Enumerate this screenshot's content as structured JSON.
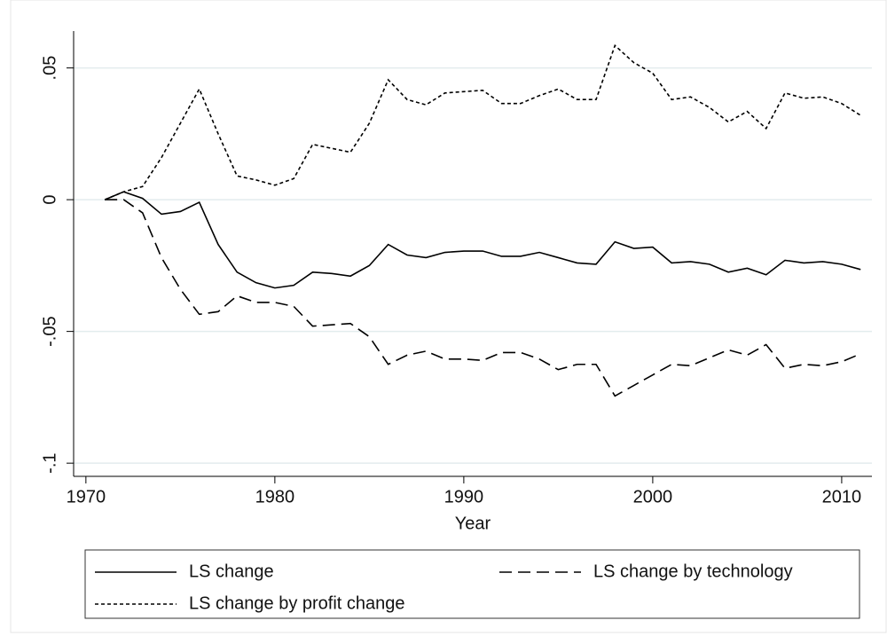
{
  "chart_data": {
    "type": "line",
    "x_label": "Year",
    "x": [
      1971,
      1972,
      1973,
      1974,
      1975,
      1976,
      1977,
      1978,
      1979,
      1980,
      1981,
      1982,
      1983,
      1984,
      1985,
      1986,
      1987,
      1988,
      1989,
      1990,
      1991,
      1992,
      1993,
      1994,
      1995,
      1996,
      1997,
      1998,
      1999,
      2000,
      2001,
      2002,
      2003,
      2004,
      2005,
      2006,
      2007,
      2008,
      2009,
      2010,
      2011
    ],
    "series": [
      {
        "name": "LS change",
        "color": "#000000",
        "line_style": "solid",
        "values": [
          0,
          0.003,
          0.0005,
          -0.0055,
          -0.0045,
          -0.001,
          -0.017,
          -0.0275,
          -0.0315,
          -0.0335,
          -0.0325,
          -0.0275,
          -0.028,
          -0.029,
          -0.025,
          -0.017,
          -0.021,
          -0.022,
          -0.02,
          -0.0195,
          -0.0195,
          -0.0215,
          -0.0215,
          -0.02,
          -0.022,
          -0.024,
          -0.0245,
          -0.016,
          -0.0185,
          -0.018,
          -0.024,
          -0.0235,
          -0.0245,
          -0.0275,
          -0.026,
          -0.0285,
          -0.023,
          -0.024,
          -0.0235,
          -0.0245,
          -0.0265
        ]
      },
      {
        "name": "LS change by technology",
        "color": "#000000",
        "line_style": "dashed",
        "values": [
          0,
          0,
          -0.005,
          -0.022,
          -0.034,
          -0.0435,
          -0.0425,
          -0.0365,
          -0.039,
          -0.039,
          -0.0405,
          -0.048,
          -0.0475,
          -0.047,
          -0.052,
          -0.0625,
          -0.059,
          -0.0575,
          -0.0605,
          -0.0605,
          -0.061,
          -0.058,
          -0.058,
          -0.0605,
          -0.0645,
          -0.0625,
          -0.0625,
          -0.0745,
          -0.0705,
          -0.0665,
          -0.0625,
          -0.063,
          -0.06,
          -0.057,
          -0.059,
          -0.055,
          -0.064,
          -0.0625,
          -0.063,
          -0.0615,
          -0.0585
        ]
      },
      {
        "name": "LS change by profit change",
        "color": "#000000",
        "line_style": "dotted",
        "values": [
          0,
          0.003,
          0.005,
          0.016,
          0.029,
          0.042,
          0.025,
          0.009,
          0.0075,
          0.0055,
          0.008,
          0.021,
          0.0195,
          0.018,
          0.029,
          0.0455,
          0.038,
          0.036,
          0.0405,
          0.041,
          0.0415,
          0.0365,
          0.0365,
          0.0395,
          0.042,
          0.038,
          0.038,
          0.0585,
          0.052,
          0.048,
          0.038,
          0.039,
          0.035,
          0.0295,
          0.0335,
          0.027,
          0.0405,
          0.0385,
          0.039,
          0.0365,
          0.032
        ]
      }
    ],
    "xlim": [
      1969.35,
      2011.6
    ],
    "ylim": [
      -0.105,
      0.064
    ],
    "xticks": [
      1970,
      1980,
      1990,
      2000,
      2010
    ],
    "yticks": [
      {
        "value": -0.1,
        "label": "-.1"
      },
      {
        "value": -0.05,
        "label": "-.05"
      },
      {
        "value": 0,
        "label": "0"
      },
      {
        "value": 0.05,
        "label": ".05"
      }
    ],
    "grid": true,
    "legend": "bottom"
  }
}
